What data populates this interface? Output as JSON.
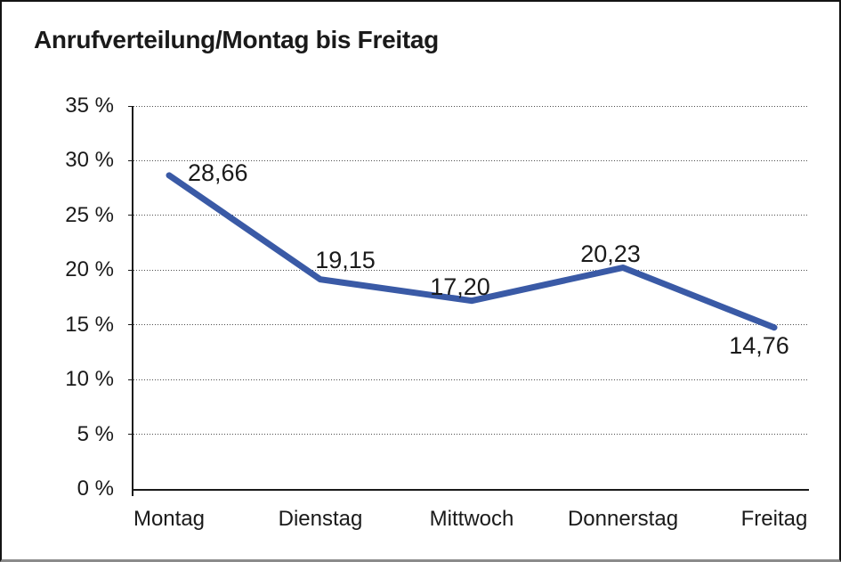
{
  "title": "Anrufverteilung/Montag bis Freitag",
  "chart_data": {
    "type": "line",
    "title": "Anrufverteilung/Montag bis Freitag",
    "categories": [
      "Montag",
      "Dienstag",
      "Mittwoch",
      "Donnerstag",
      "Freitag"
    ],
    "values": [
      28.66,
      19.15,
      17.2,
      20.23,
      14.76
    ],
    "value_labels": [
      "28,66",
      "19,15",
      "17,20",
      "20,23",
      "14,76"
    ],
    "xlabel": "",
    "ylabel": "",
    "ylim": [
      0,
      35
    ],
    "y_ticks": [
      35,
      30,
      25,
      20,
      15,
      10,
      5,
      0
    ],
    "y_tick_labels": [
      "35 %",
      "30 %",
      "25 %",
      "20 %",
      "15 %",
      "10 %",
      "5 %",
      "0 %"
    ],
    "grid": "horizontal-dotted",
    "legend": "none",
    "line_color": "#3a5aa6",
    "text_color": "#1a1a1a",
    "frame_color": "#141414",
    "frame_bottom_color": "#8b8b8b"
  }
}
